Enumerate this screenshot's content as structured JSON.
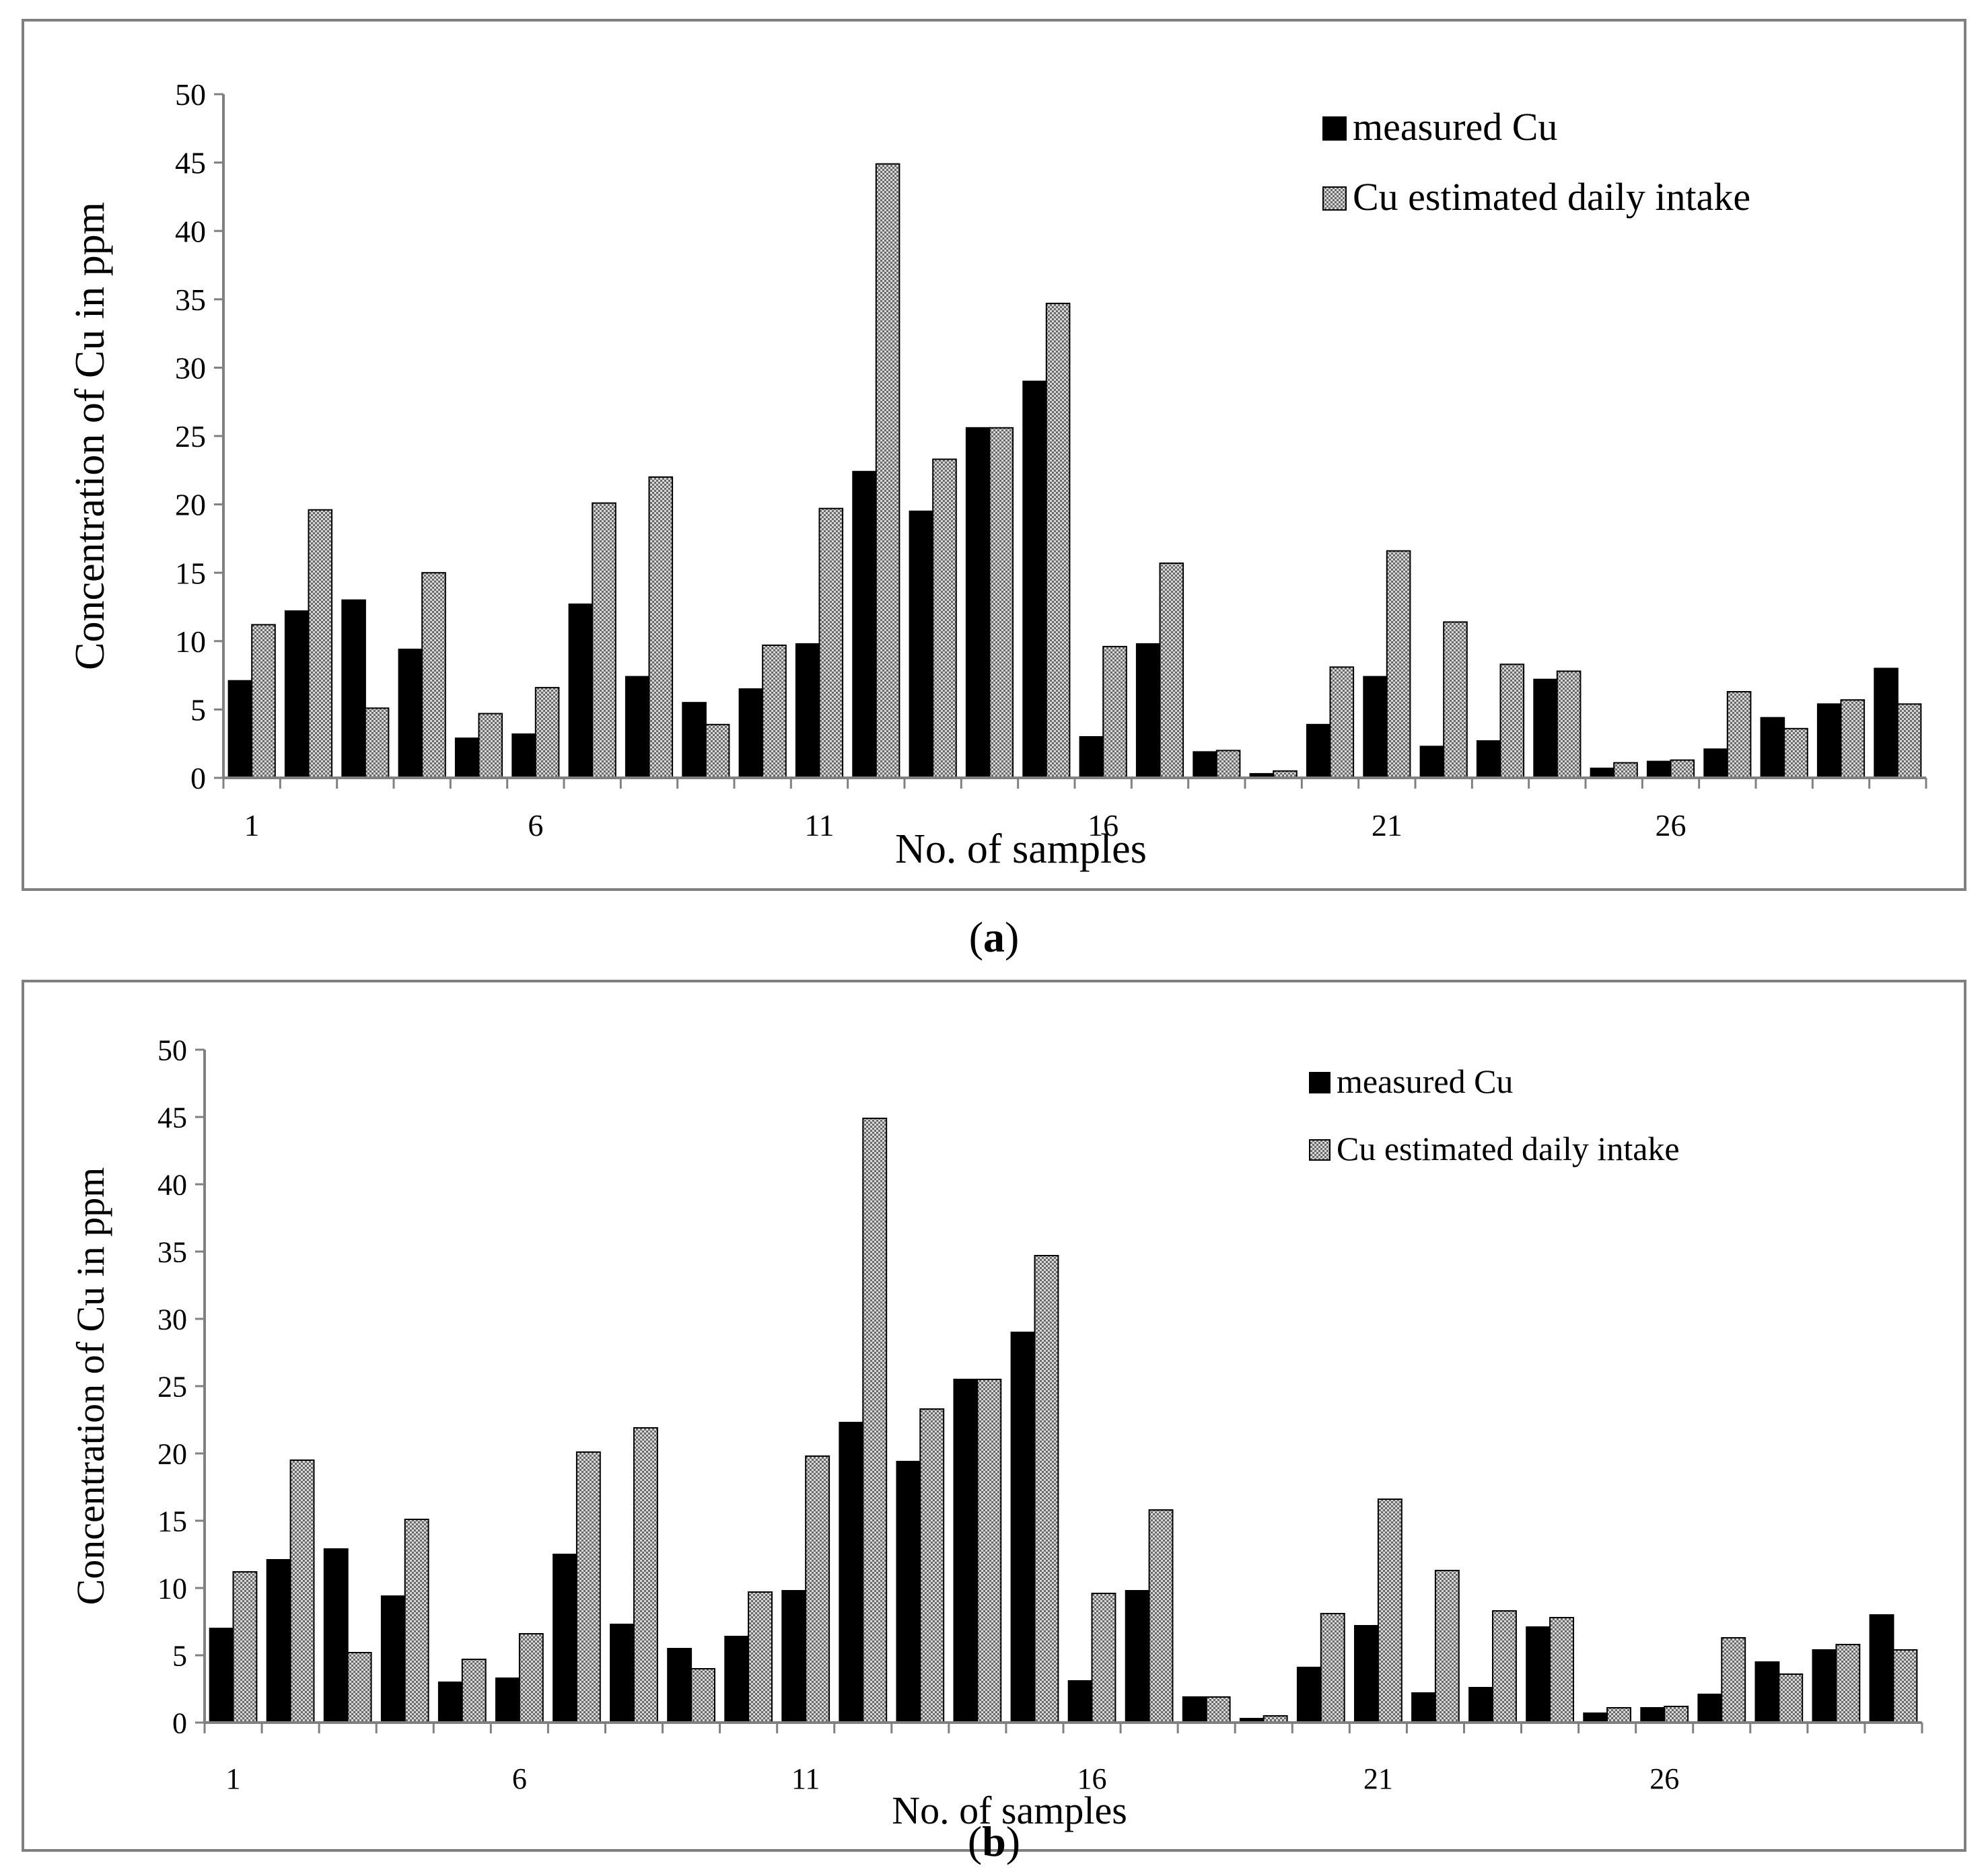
{
  "panels": [
    {
      "label_letter": "a"
    },
    {
      "label_letter": "b"
    }
  ],
  "chart_data": [
    {
      "type": "bar",
      "title": "",
      "panel": "(a)",
      "xlabel": "No. of samples",
      "ylabel": "Concentration of Cu in ppm",
      "ylim": [
        0,
        50
      ],
      "yticks": [
        0,
        5,
        10,
        15,
        20,
        25,
        30,
        35,
        40,
        45,
        50
      ],
      "x_tick_labels": [
        "1",
        "6",
        "11",
        "16",
        "21",
        "26"
      ],
      "x_tick_positions": [
        1,
        6,
        11,
        16,
        21,
        26
      ],
      "categories": [
        1,
        2,
        3,
        4,
        5,
        6,
        7,
        8,
        9,
        10,
        11,
        12,
        13,
        14,
        15,
        16,
        17,
        18,
        19,
        20,
        21,
        22,
        23,
        24,
        25,
        26,
        27,
        28,
        29,
        30
      ],
      "legend_position": "top-right",
      "grid": false,
      "series": [
        {
          "name": "measured Cu",
          "color": "#000000",
          "values": [
            7.1,
            12.2,
            13.0,
            9.4,
            2.9,
            3.2,
            12.7,
            7.4,
            5.5,
            6.5,
            9.8,
            22.4,
            19.5,
            25.6,
            29.0,
            3.0,
            9.8,
            1.9,
            0.3,
            3.9,
            7.4,
            2.3,
            2.7,
            7.2,
            0.7,
            1.2,
            2.1,
            4.4,
            5.4,
            8.0
          ]
        },
        {
          "name": "Cu estimated daily intake",
          "color": "#c8c8c8",
          "values": [
            11.2,
            19.6,
            5.1,
            15.0,
            4.7,
            6.6,
            20.1,
            22.0,
            3.9,
            9.7,
            19.7,
            44.9,
            23.3,
            25.6,
            34.7,
            9.6,
            15.7,
            2.0,
            0.5,
            8.1,
            16.6,
            11.4,
            8.3,
            7.8,
            1.1,
            1.3,
            6.3,
            3.6,
            5.7,
            5.4
          ]
        }
      ]
    },
    {
      "type": "bar",
      "title": "",
      "panel": "(b)",
      "xlabel": "No. of samples",
      "ylabel": "Concentration of Cu in ppm",
      "ylim": [
        0,
        50
      ],
      "yticks": [
        0,
        5,
        10,
        15,
        20,
        25,
        30,
        35,
        40,
        45,
        50
      ],
      "x_tick_labels": [
        "1",
        "6",
        "11",
        "16",
        "21",
        "26"
      ],
      "x_tick_positions": [
        1,
        6,
        11,
        16,
        21,
        26
      ],
      "categories": [
        1,
        2,
        3,
        4,
        5,
        6,
        7,
        8,
        9,
        10,
        11,
        12,
        13,
        14,
        15,
        16,
        17,
        18,
        19,
        20,
        21,
        22,
        23,
        24,
        25,
        26,
        27,
        28,
        29,
        30
      ],
      "legend_position": "top-right",
      "grid": false,
      "series": [
        {
          "name": "measured Cu",
          "color": "#000000",
          "values": [
            7.0,
            12.1,
            12.9,
            9.4,
            3.0,
            3.3,
            12.5,
            7.3,
            5.5,
            6.4,
            9.8,
            22.3,
            19.4,
            25.5,
            29.0,
            3.1,
            9.8,
            1.9,
            0.3,
            4.1,
            7.2,
            2.2,
            2.6,
            7.1,
            0.7,
            1.1,
            2.1,
            4.5,
            5.4,
            8.0
          ]
        },
        {
          "name": "Cu estimated daily intake",
          "color": "#c8c8c8",
          "values": [
            11.2,
            19.5,
            5.2,
            15.1,
            4.7,
            6.6,
            20.1,
            21.9,
            4.0,
            9.7,
            19.8,
            44.9,
            23.3,
            25.5,
            34.7,
            9.6,
            15.8,
            1.9,
            0.5,
            8.1,
            16.6,
            11.3,
            8.3,
            7.8,
            1.1,
            1.2,
            6.3,
            3.6,
            5.8,
            5.4
          ]
        }
      ]
    }
  ]
}
